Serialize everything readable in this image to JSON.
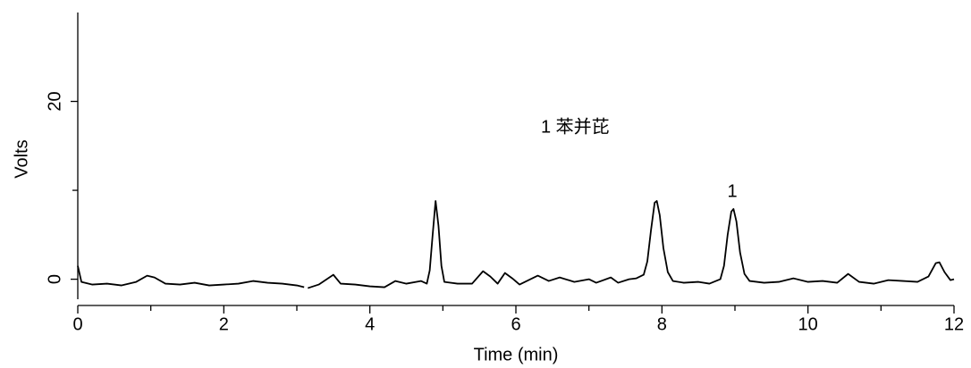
{
  "chart_data": {
    "type": "line",
    "x_label": "Time (min)",
    "y_label": "Volts",
    "annotations": [
      "1 苯并芘",
      "1"
    ],
    "color": "#000000",
    "xlim": [
      0,
      12
    ],
    "xticks": [
      0,
      2,
      4,
      6,
      8,
      10,
      12
    ],
    "xminor_ticks": [
      1,
      3,
      5,
      7,
      9,
      11
    ],
    "ylim": [
      -2,
      30
    ],
    "yticks": [
      0,
      20
    ],
    "yminor_ticks": [
      10
    ],
    "x": [
      0,
      0.05,
      0.2,
      0.4,
      0.6,
      0.8,
      0.95,
      1.05,
      1.2,
      1.4,
      1.6,
      1.8,
      2.0,
      2.2,
      2.4,
      2.6,
      2.8,
      3.0,
      3.1,
      3.12,
      3.15,
      3.3,
      3.5,
      3.6,
      3.8,
      4.0,
      4.2,
      4.35,
      4.5,
      4.7,
      4.78,
      4.82,
      4.86,
      4.9,
      4.94,
      4.98,
      5.02,
      5.2,
      5.4,
      5.55,
      5.65,
      5.75,
      5.85,
      5.95,
      6.05,
      6.2,
      6.3,
      6.45,
      6.6,
      6.8,
      7.0,
      7.1,
      7.3,
      7.4,
      7.55,
      7.65,
      7.75,
      7.8,
      7.85,
      7.9,
      7.93,
      7.97,
      8.02,
      8.08,
      8.15,
      8.3,
      8.5,
      8.65,
      8.8,
      8.85,
      8.9,
      8.95,
      8.98,
      9.02,
      9.07,
      9.13,
      9.2,
      9.4,
      9.6,
      9.8,
      10.0,
      10.2,
      10.4,
      10.55,
      10.7,
      10.9,
      11.1,
      11.3,
      11.5,
      11.65,
      11.75,
      11.8,
      11.87,
      11.95,
      12.0
    ],
    "values": [
      1.5,
      -0.3,
      -0.6,
      -0.5,
      -0.7,
      -0.3,
      0.4,
      0.2,
      -0.5,
      -0.6,
      -0.4,
      -0.7,
      -0.6,
      -0.5,
      -0.2,
      -0.4,
      -0.5,
      -0.7,
      -0.9,
      null,
      -1.0,
      -0.6,
      0.5,
      -0.5,
      -0.6,
      -0.8,
      -0.9,
      -0.2,
      -0.5,
      -0.2,
      -0.5,
      1,
      5,
      8.8,
      6,
      1.5,
      -0.3,
      -0.5,
      -0.5,
      0.9,
      0.3,
      -0.5,
      0.7,
      0.1,
      -0.6,
      0,
      0.4,
      -0.2,
      0.2,
      -0.3,
      0,
      -0.4,
      0.2,
      -0.4,
      0,
      0.1,
      0.5,
      2,
      5.5,
      8.6,
      8.8,
      7.2,
      3.5,
      0.8,
      -0.2,
      -0.4,
      -0.3,
      -0.5,
      0,
      1.5,
      5,
      7.6,
      7.9,
      6.5,
      3,
      0.6,
      -0.2,
      -0.4,
      -0.3,
      0.1,
      -0.3,
      -0.2,
      -0.4,
      0.6,
      -0.3,
      -0.5,
      -0.1,
      -0.2,
      -0.3,
      0.3,
      1.8,
      1.9,
      0.8,
      -0.1,
      0
    ]
  }
}
